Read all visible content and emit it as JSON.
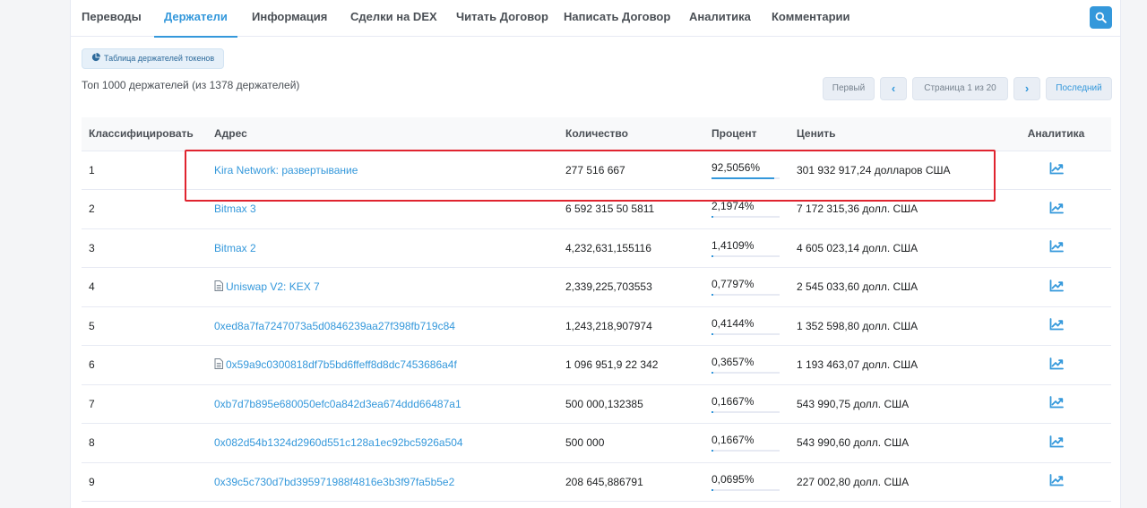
{
  "tabs": [
    {
      "label": "Переводы"
    },
    {
      "label": "Держатели"
    },
    {
      "label": "Информация"
    },
    {
      "label": "Сделки на DEX"
    },
    {
      "label": "Читать Договор"
    },
    {
      "label": "Написать Договор"
    },
    {
      "label": "Аналитика"
    },
    {
      "label": "Комментарии"
    }
  ],
  "active_tab": "Держатели",
  "chart_button_label": "Таблица держателей токенов",
  "summary_text": "Топ 1000 держателей (из 1378 держателей)",
  "pagination": {
    "first": "Первый",
    "prev": "‹",
    "page_info": "Страница 1 из 20",
    "next": "›",
    "last": "Последний"
  },
  "table": {
    "headers": {
      "rank": "Классифицировать",
      "address": "Адрес",
      "quantity": "Количество",
      "percent": "Процент",
      "value": "Ценить",
      "analytics": "Аналитика"
    },
    "rows": [
      {
        "rank": "1",
        "address": "Kira Network: развертывание",
        "contract": false,
        "quantity": "277 516 667",
        "percent": "92,5056%",
        "percent_value": 92.5056,
        "value": "301 932 917,24 долларов США"
      },
      {
        "rank": "2",
        "address": "Bitmax 3",
        "contract": false,
        "quantity": "6 592 315 50 5811",
        "percent": "2,1974%",
        "percent_value": 2.1974,
        "value": "7 172 315,36 долл. США"
      },
      {
        "rank": "3",
        "address": "Bitmax 2",
        "contract": false,
        "quantity": "4,232,631,155116",
        "percent": "1,4109%",
        "percent_value": 1.4109,
        "value": "4 605 023,14 долл. США"
      },
      {
        "rank": "4",
        "address": "Uniswap V2: KEX 7",
        "contract": true,
        "quantity": "2,339,225,703553",
        "percent": "0,7797%",
        "percent_value": 0.7797,
        "value": "2 545 033,60 долл. США"
      },
      {
        "rank": "5",
        "address": "0xed8a7fa7247073a5d0846239aa27f398fb719c84",
        "contract": false,
        "quantity": "1,243,218,907974",
        "percent": "0,4144%",
        "percent_value": 0.4144,
        "value": "1 352 598,80 долл. США"
      },
      {
        "rank": "6",
        "address": "0x59a9c0300818df7b5bd6ffeff8d8dc7453686a4f",
        "contract": true,
        "quantity": "1 096 951,9 22 342",
        "percent": "0,3657%",
        "percent_value": 0.3657,
        "value": "1 193 463,07 долл. США"
      },
      {
        "rank": "7",
        "address": "0xb7d7b895e680050efc0a842d3ea674ddd66487a1",
        "contract": false,
        "quantity": "500 000,132385",
        "percent": "0,1667%",
        "percent_value": 0.1667,
        "value": "543 990,75 долл. США"
      },
      {
        "rank": "8",
        "address": "0x082d54b1324d2960d551c128a1ec92bc5926a504",
        "contract": false,
        "quantity": "500 000",
        "percent": "0,1667%",
        "percent_value": 0.1667,
        "value": "543 990,60 долл. США"
      },
      {
        "rank": "9",
        "address": "0x39c5c730d7bd395971988f4816e3b3f97fa5b5e2",
        "contract": false,
        "quantity": "208 645,886791",
        "percent": "0,0695%",
        "percent_value": 0.0695,
        "value": "227 002,80 долл. США"
      }
    ]
  },
  "icons": {
    "search": "search-icon",
    "chart": "pie-chart-icon",
    "contract": "document-icon",
    "analytics": "trend-chart-icon"
  },
  "colors": {
    "accent": "#3498db",
    "highlight": "#e0242f"
  }
}
